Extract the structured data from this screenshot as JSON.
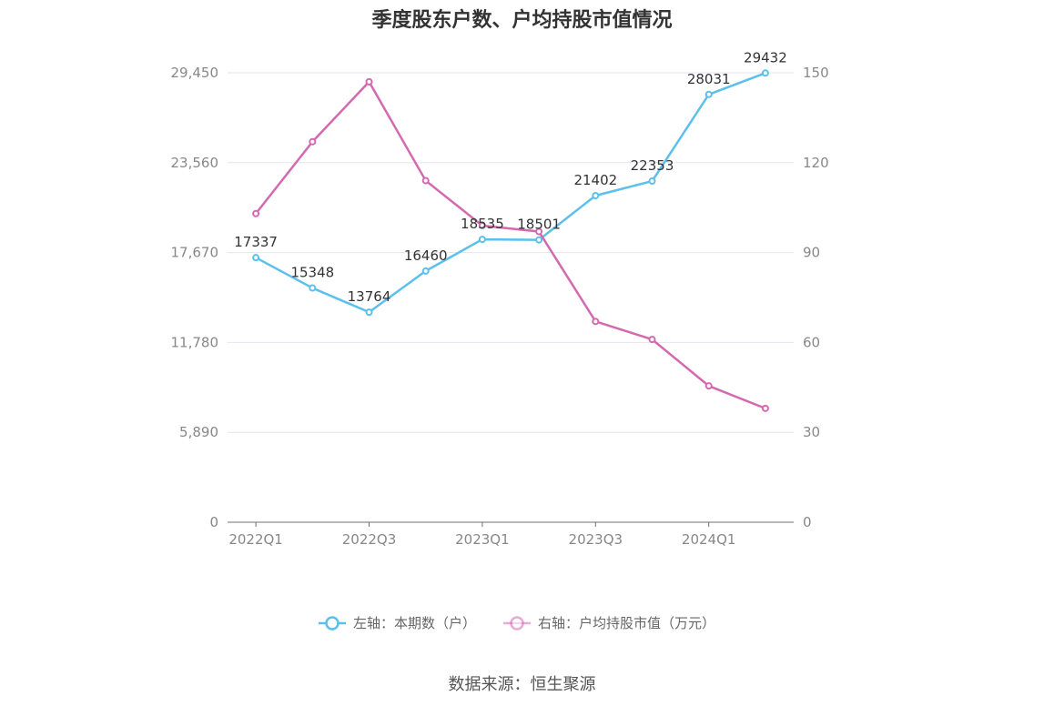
{
  "chart_data": {
    "type": "line",
    "title": "季度股东户数、户均持股市值情况",
    "categories": [
      "2022Q1",
      "2022Q2",
      "2022Q3",
      "2022Q4",
      "2023Q1",
      "2023Q2",
      "2023Q3",
      "2023Q4",
      "2024Q1",
      "2024Q2"
    ],
    "x_tick_labels": [
      "2022Q1",
      "2022Q3",
      "2023Q1",
      "2023Q3",
      "2024Q1"
    ],
    "left_axis": {
      "ticks": [
        "0",
        "5,890",
        "11,780",
        "17,670",
        "23,560",
        "29,450"
      ],
      "ylim": [
        0,
        29450
      ]
    },
    "right_axis": {
      "ticks": [
        "0",
        "30",
        "60",
        "90",
        "120",
        "150"
      ],
      "ylim": [
        0,
        150
      ]
    },
    "series": [
      {
        "name": "左轴：本期数（户）",
        "axis": "left",
        "color": "#5bc0eb",
        "values": [
          17337,
          15348,
          13764,
          16460,
          18535,
          18501,
          21402,
          22353,
          28031,
          29432
        ],
        "labels": [
          "17337",
          "15348",
          "13764",
          "16460",
          "18535",
          "18501",
          "21402",
          "22353",
          "28031",
          "29432"
        ]
      },
      {
        "name": "右轴：户均持股市值（万元）",
        "axis": "right",
        "color": "#d36ab0",
        "values": [
          103,
          127,
          147,
          114,
          99,
          97,
          67,
          61,
          45.5,
          38
        ]
      }
    ],
    "grid": true,
    "legend_position": "bottom"
  },
  "source": "数据来源：恒生聚源"
}
